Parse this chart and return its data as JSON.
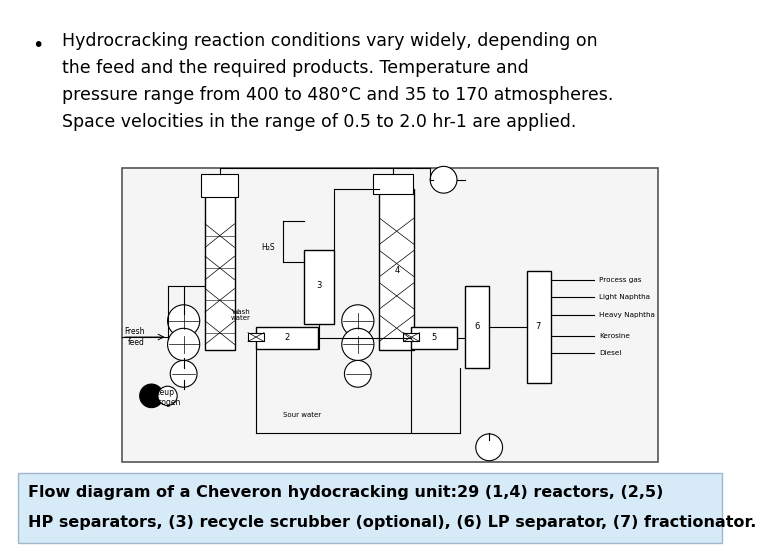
{
  "background_color": "#ffffff",
  "bullet_text_lines": [
    "Hydrocracking reaction conditions vary widely, depending on",
    "the feed and the required products. Temperature and",
    "pressure range from 400 to 480°C and 35 to 170 atmospheres.",
    "Space velocities in the range of 0.5 to 2.0 hr-1 are applied."
  ],
  "caption_line1": "Flow diagram of a Cheveron hydocracking unit:29 (1,4) reactors, (2,5)",
  "caption_line2": "HP separators, (3) recycle scrubber (optional), (6) LP separator, (7) fractionator.",
  "caption_bg_color": "#d6eaf8",
  "caption_border_color": "#a0b8cc",
  "text_color": "#000000",
  "bullet_fontsize": 12.5,
  "caption_fontsize": 11.5,
  "diagram_bg": "#f5f5f5",
  "diagram_border": "#555555"
}
